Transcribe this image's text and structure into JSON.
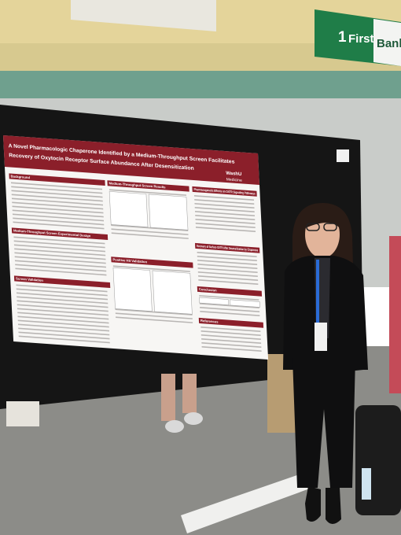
{
  "banner": {
    "number": "1",
    "word1": "First",
    "word2": "Bank"
  },
  "poster": {
    "title_line1": "A Novel Pharmacologic Chaperone Identified by a Medium-Throughput Screen Facilitates",
    "title_line2": "Recovery of Oxytocin Receptor Surface Abundance After Desensitization",
    "logo": "WashU",
    "logo_sub": "Medicine",
    "sections": [
      "Background",
      "Medium-Throughput Screen Results",
      "Pharmacogenetic Effects on OXTR Signaling Pathways",
      "Medium-Throughput Screen Experimental Design",
      "Positive Hit Validation",
      "Recovery of Surface OXTR After Desensitization by Chaperone",
      "Screen Validation",
      "Conclusion",
      "References"
    ]
  }
}
